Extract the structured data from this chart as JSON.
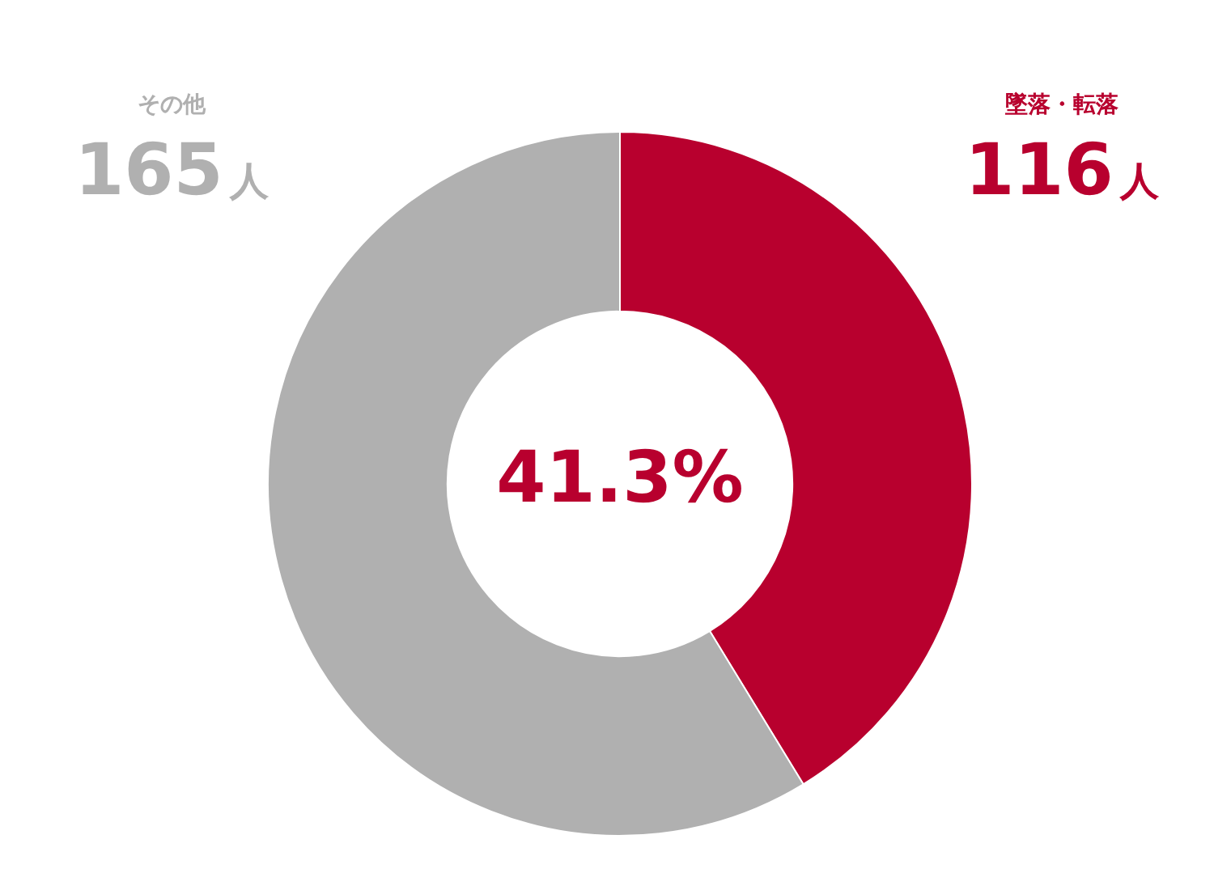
{
  "chart_data": {
    "type": "donut",
    "categories": [
      "墜落・転落",
      "その他"
    ],
    "values": [
      116,
      165
    ],
    "colors": [
      "#b8002e",
      "#b0b0b0"
    ],
    "value_labels": [
      "116人",
      "165人"
    ],
    "annotations": [
      "41.3%"
    ],
    "legend": false
  }
}
